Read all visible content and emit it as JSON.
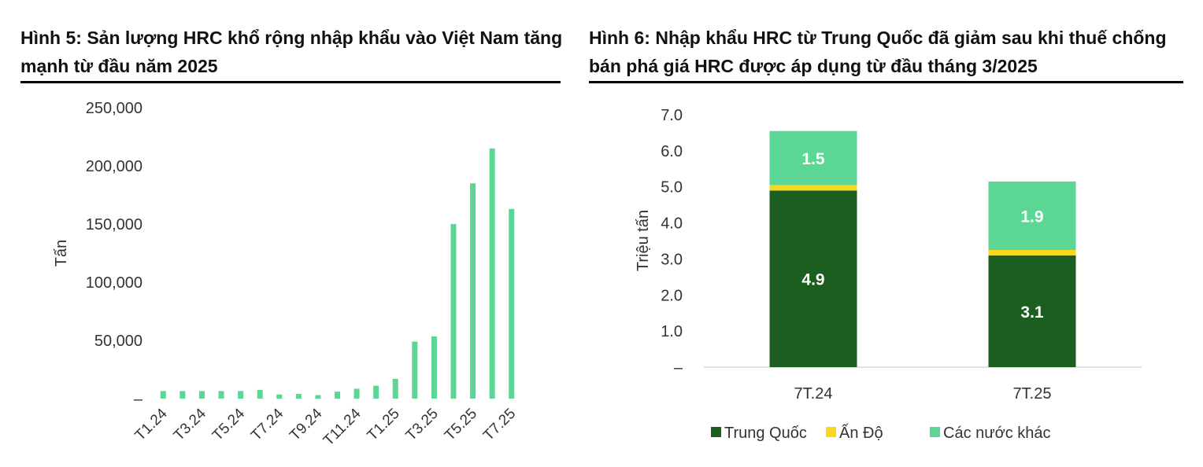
{
  "figures": [
    {
      "title": "Hình 5: Sản lượng HRC khổ rộng nhập khẩu vào Việt Nam tăng mạnh từ đầu năm 2025",
      "chart_data": {
        "type": "bar",
        "ylabel": "Tấn",
        "ylim": [
          0,
          250000
        ],
        "yticks": [
          "–",
          "50,000",
          "100,000",
          "150,000",
          "200,000",
          "250,000"
        ],
        "categories": [
          "T1.24",
          "T2.24",
          "T3.24",
          "T4.24",
          "T5.24",
          "T6.24",
          "T7.24",
          "T8.24",
          "T9.24",
          "T10.24",
          "T11.24",
          "T12.24",
          "T1.25",
          "T2.25",
          "T3.25",
          "T4.25",
          "T5.25",
          "T6.25",
          "T7.25"
        ],
        "xtick_labels_shown": [
          "T1.24",
          "T3.24",
          "T5.24",
          "T7.24",
          "T9.24",
          "T11.24",
          "T1.25",
          "T3.25",
          "T5.25",
          "T7.25"
        ],
        "values": [
          6500,
          6500,
          6500,
          6500,
          6500,
          7500,
          3500,
          4000,
          3000,
          6000,
          8500,
          11000,
          17000,
          49000,
          53500,
          150000,
          185000,
          215000,
          163000
        ],
        "bar_color": "#5cd695",
        "grid": false
      }
    },
    {
      "title": "Hình 6: Nhập khẩu HRC từ Trung Quốc đã giảm sau khi thuế chống bán phá giá HRC được áp dụng từ đầu tháng 3/2025",
      "chart_data": {
        "type": "bar",
        "stacked": true,
        "ylabel": "Triệu tấn",
        "ylim": [
          0,
          7
        ],
        "yticks": [
          "–",
          "1.0",
          "2.0",
          "3.0",
          "4.0",
          "5.0",
          "6.0",
          "7.0"
        ],
        "categories": [
          "7T.24",
          "7T.25"
        ],
        "series": [
          {
            "name": "Trung Quốc",
            "color": "#1b5e20",
            "values": [
              4.9,
              3.1
            ],
            "labels": [
              "4.9",
              "3.1"
            ]
          },
          {
            "name": "Ấn Độ",
            "color": "#f9d71c",
            "values": [
              0.15,
              0.15
            ],
            "labels": [
              "",
              ""
            ]
          },
          {
            "name": "Các nước khác",
            "color": "#5cd695",
            "values": [
              1.5,
              1.9
            ],
            "labels": [
              "1.5",
              "1.9"
            ]
          }
        ],
        "legend_position": "bottom",
        "grid": false
      }
    }
  ]
}
